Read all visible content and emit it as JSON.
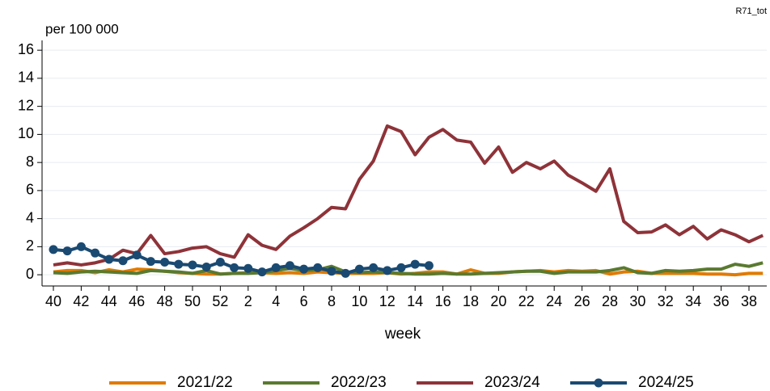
{
  "chart_data": {
    "type": "line",
    "y_label": "per 100 000",
    "x_label": "week",
    "annotation": "R71_tot",
    "categories": [
      40,
      null,
      42,
      null,
      44,
      null,
      46,
      null,
      48,
      null,
      50,
      null,
      52,
      null,
      2,
      null,
      4,
      null,
      6,
      null,
      8,
      null,
      10,
      null,
      12,
      null,
      14,
      null,
      16,
      null,
      18,
      null,
      20,
      null,
      22,
      null,
      24,
      null,
      26,
      null,
      28,
      null,
      30,
      null,
      32,
      null,
      34,
      null,
      36,
      null,
      38,
      null
    ],
    "ylim": [
      -0.8,
      16.7
    ],
    "yticks": [
      0,
      2,
      4,
      6,
      8,
      10,
      12,
      14,
      16
    ],
    "grid": true,
    "legend": "bottom",
    "series": [
      {
        "name": "2021/22",
        "color": "#e07b00",
        "markers": false,
        "values": [
          0.2,
          0.3,
          0.3,
          0.15,
          0.35,
          0.2,
          0.4,
          0.35,
          0.25,
          0.15,
          0.1,
          0.05,
          0.05,
          0.1,
          0.15,
          0.15,
          0.1,
          0.15,
          0.1,
          0.2,
          0.15,
          0.1,
          0.1,
          0.1,
          0.15,
          0.05,
          0.1,
          0.2,
          0.2,
          0.05,
          0.35,
          0.1,
          0.1,
          0.2,
          0.25,
          0.3,
          0.2,
          0.3,
          0.25,
          0.3,
          0.05,
          0.2,
          0.25,
          0.1,
          0.1,
          0.1,
          0.1,
          0.05,
          0.05,
          0.0,
          0.1,
          0.1
        ]
      },
      {
        "name": "2022/23",
        "color": "#5a7a30",
        "markers": false,
        "values": [
          0.15,
          0.1,
          0.2,
          0.25,
          0.2,
          0.15,
          0.1,
          0.3,
          0.25,
          0.2,
          0.1,
          0.3,
          0.05,
          0.1,
          0.1,
          0.15,
          0.3,
          0.45,
          0.3,
          0.35,
          0.6,
          0.2,
          0.15,
          0.2,
          0.15,
          0.1,
          0.05,
          0.05,
          0.1,
          0.05,
          0.05,
          0.1,
          0.15,
          0.2,
          0.25,
          0.25,
          0.1,
          0.2,
          0.2,
          0.2,
          0.3,
          0.5,
          0.15,
          0.1,
          0.3,
          0.25,
          0.3,
          0.4,
          0.4,
          0.75,
          0.6,
          0.85
        ]
      },
      {
        "name": "2023/24",
        "color": "#8e3339",
        "markers": false,
        "values": [
          0.7,
          0.85,
          0.7,
          0.85,
          1.1,
          1.75,
          1.5,
          2.8,
          1.5,
          1.65,
          1.9,
          2.0,
          1.5,
          1.25,
          2.85,
          2.1,
          1.8,
          2.75,
          3.35,
          4.0,
          4.8,
          4.7,
          6.8,
          8.1,
          10.6,
          10.2,
          8.55,
          9.8,
          10.35,
          9.6,
          9.45,
          7.95,
          9.1,
          7.3,
          8.0,
          7.55,
          8.1,
          7.1,
          6.55,
          5.95,
          7.55,
          3.8,
          3.0,
          3.05,
          3.55,
          2.85,
          3.45,
          2.55,
          3.2,
          2.85,
          2.35,
          2.8
        ]
      },
      {
        "name": "2024/25",
        "color": "#1a4a72",
        "markers": true,
        "values": [
          1.8,
          1.7,
          2.0,
          1.55,
          1.1,
          1.0,
          1.4,
          0.95,
          0.9,
          0.75,
          0.7,
          0.55,
          0.9,
          0.5,
          0.45,
          0.2,
          0.5,
          0.65,
          0.4,
          0.5,
          0.25,
          0.1,
          0.4,
          0.5,
          0.3,
          0.5,
          0.75,
          0.65,
          null,
          null,
          null,
          null,
          null,
          null,
          null,
          null,
          null,
          null,
          null,
          null,
          null,
          null,
          null,
          null,
          null,
          null,
          null,
          null,
          null,
          null,
          null,
          null
        ]
      }
    ]
  }
}
